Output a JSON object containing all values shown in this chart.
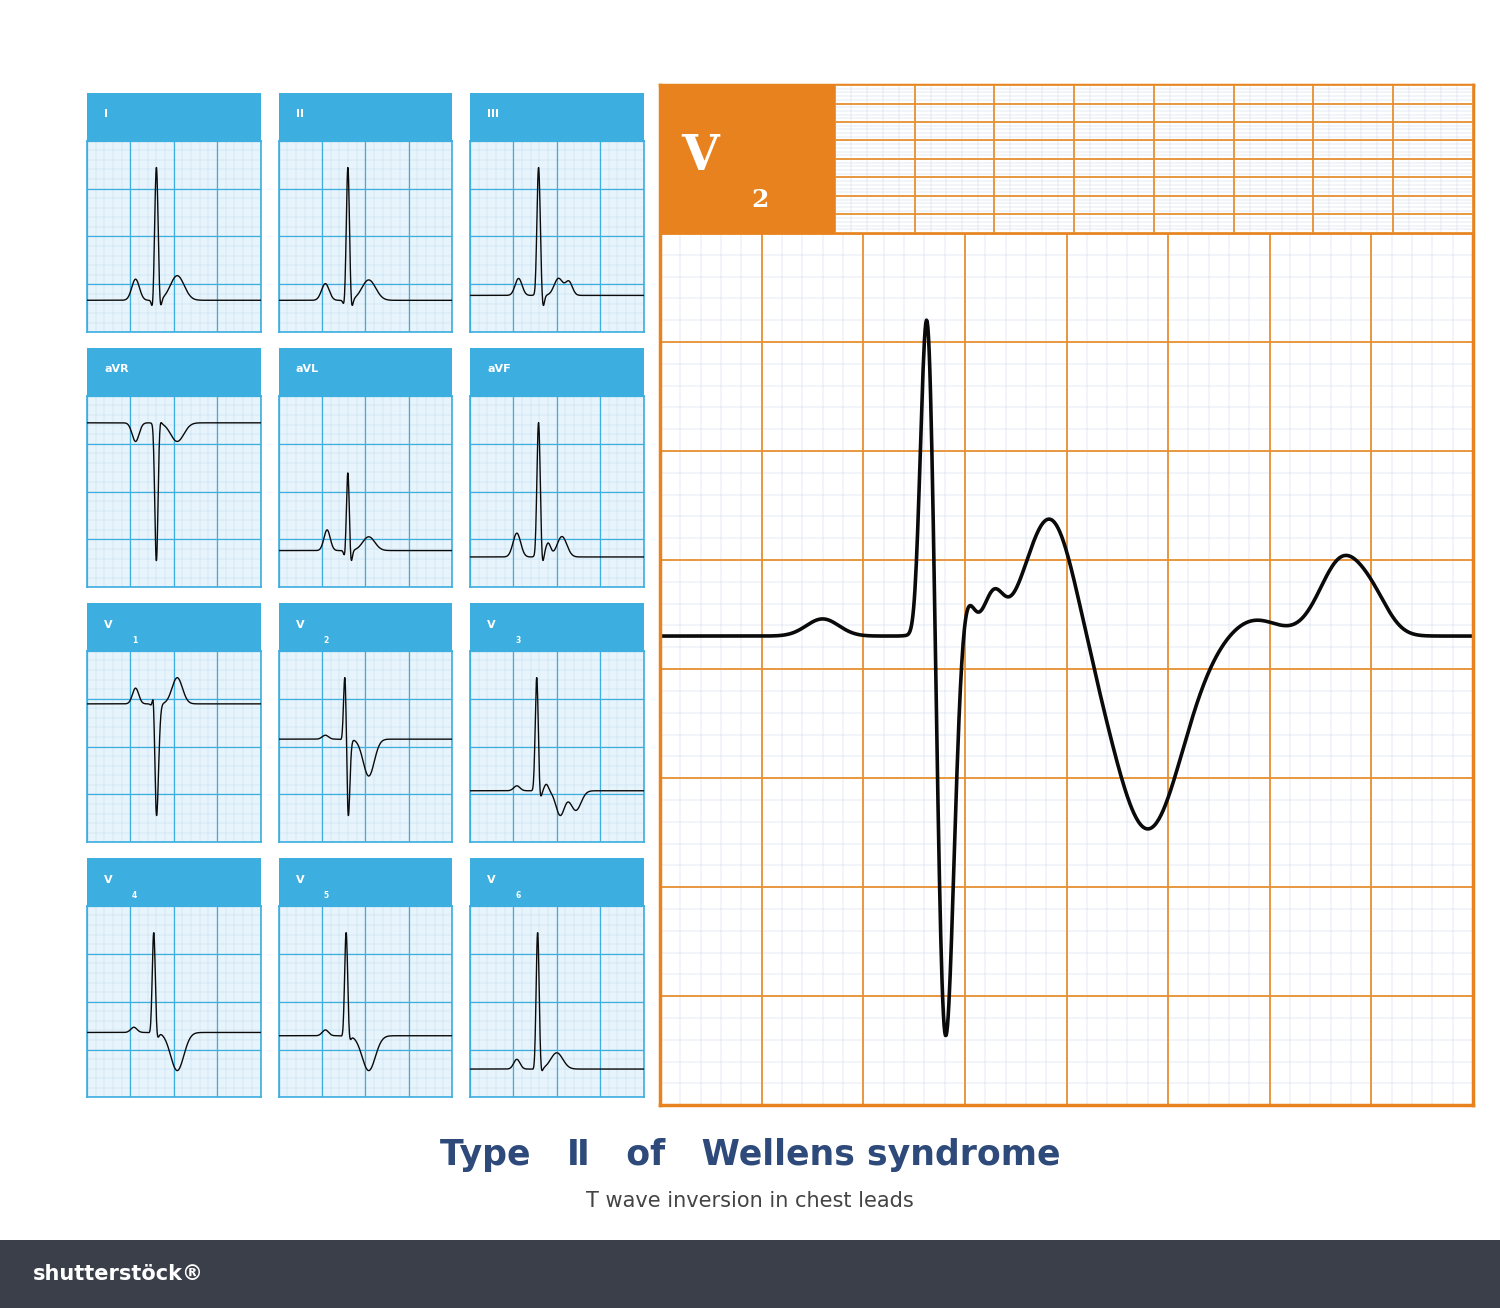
{
  "title_color": "#2d4a7a",
  "subtitle_color": "#444444",
  "bg_color": "#ffffff",
  "orange_color": "#e8821e",
  "blue_color": "#3daee0",
  "large_grid_minor_color": "#c8d8e8",
  "large_grid_major_color": "#e89030",
  "small_grid_minor_color": "#b8daf0",
  "small_grid_major_color": "#3daee0",
  "ecg_color": "#0a0a0a",
  "lead_labels": [
    "I",
    "II",
    "III",
    "aVR",
    "aVL",
    "aVF",
    "V1",
    "V2",
    "V3",
    "V4",
    "V5",
    "V6"
  ],
  "shutterstock_bar_color": "#3a3f4a"
}
